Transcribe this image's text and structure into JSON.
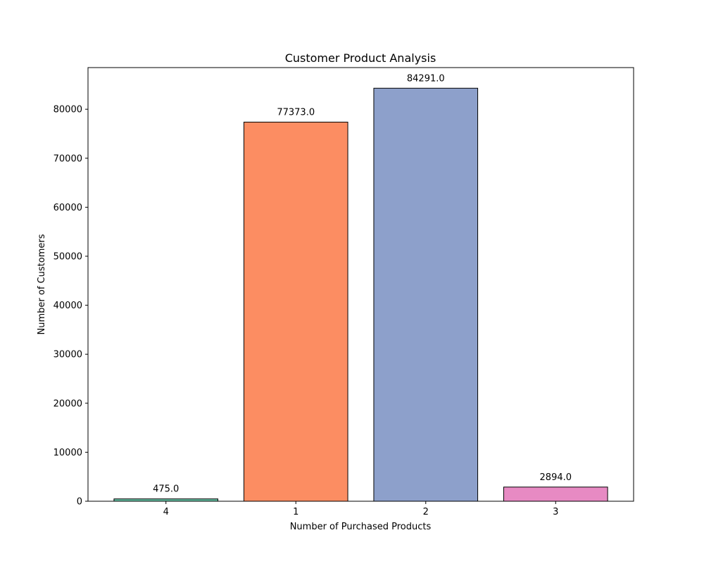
{
  "chart_data": {
    "type": "bar",
    "title": "Customer Product Analysis",
    "xlabel": "Number of Purchased Products",
    "ylabel": "Number of Customers",
    "categories": [
      "4",
      "1",
      "2",
      "3"
    ],
    "values": [
      475.0,
      77373.0,
      84291.0,
      2894.0
    ],
    "data_labels": [
      "475.0",
      "77373.0",
      "84291.0",
      "2894.0"
    ],
    "colors": [
      "#66c2a5",
      "#fc8d62",
      "#8da0cb",
      "#e78ac3"
    ],
    "edge_color": "#000000",
    "ylim": [
      0,
      88500
    ],
    "yticks": [
      0,
      10000,
      20000,
      30000,
      40000,
      50000,
      60000,
      70000,
      80000
    ],
    "ytick_labels": [
      "0",
      "10000",
      "20000",
      "30000",
      "40000",
      "50000",
      "60000",
      "70000",
      "80000"
    ],
    "grid": false,
    "legend": "none"
  }
}
